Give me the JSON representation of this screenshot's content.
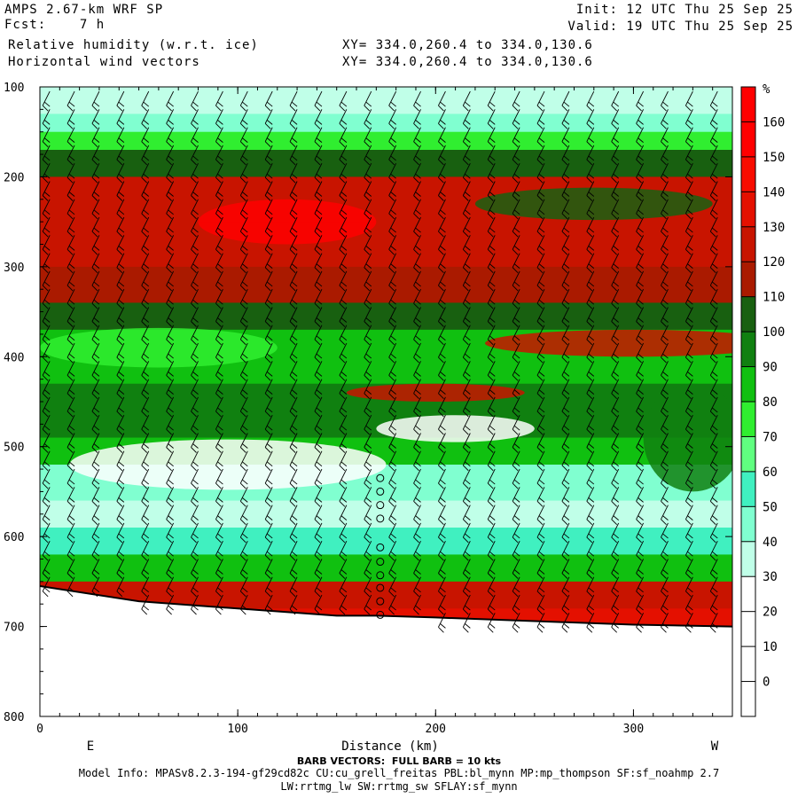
{
  "header": {
    "model": "AMPS 2.67-km WRF SP",
    "fcst": "Fcst:    7 h",
    "field1": "Relative humidity (w.r.t. ice)",
    "field2": "Horizontal wind vectors",
    "init": "Init: 12 UTC Thu 25 Sep 25",
    "valid": "Valid: 19 UTC Thu 25 Sep 25",
    "xy1": "XY= 334.0,260.4 to 334.0,130.6",
    "xy2": "XY= 334.0,260.4 to 334.0,130.6"
  },
  "footer": {
    "barb_note": "BARB VECTORS:  FULL BARB = 10 kts",
    "model_info": "Model Info: MPASv8.2.3-194-gf29cd82c CU:cu_grell_freitas PBL:bl_mynn MP:mp_thompson SF:sf_noahmp 2.7",
    "model_info2": "LW:rrtmg_lw SW:rrtmg_sw SFLAY:sf_mynn"
  },
  "chart_data": {
    "type": "heatmap",
    "title": "Relative humidity (w.r.t. ice)",
    "overlay": "Horizontal wind vectors (barbs)",
    "xlabel": "Distance (km)",
    "ylabel": "",
    "x_range": [
      0,
      350
    ],
    "y_range": [
      100,
      800
    ],
    "y_inverted": true,
    "x_ticks": [
      0,
      100,
      200,
      300
    ],
    "y_ticks": [
      100,
      200,
      300,
      400,
      500,
      600,
      700,
      800
    ],
    "x_end_labels": {
      "left": "E",
      "right": "W"
    },
    "colorbar": {
      "unit": "%",
      "levels": [
        0,
        10,
        20,
        30,
        40,
        50,
        60,
        70,
        80,
        90,
        100,
        110,
        120,
        130,
        140,
        150,
        160
      ],
      "colors": [
        "#ffffff",
        "#ffffff",
        "#ffffff",
        "#ffffff",
        "#c0ffe8",
        "#80ffd0",
        "#40f0c0",
        "#60ff80",
        "#30ee30",
        "#10c010",
        "#108010",
        "#186010",
        "#aa1a00",
        "#c81400",
        "#e41000",
        "#f80c00",
        "#ff0000",
        "#ff0000"
      ]
    },
    "rh_profile": {
      "pressure": [
        100,
        130,
        150,
        170,
        200,
        250,
        300,
        340,
        370,
        400,
        430,
        460,
        490,
        520,
        560,
        590,
        620,
        650,
        680
      ],
      "rh_west_mid": [
        35,
        45,
        75,
        100,
        125,
        125,
        118,
        102,
        80,
        88,
        95,
        98,
        80,
        40,
        35,
        55,
        85,
        125,
        130
      ]
    },
    "terrain_pressure": {
      "x": [
        0,
        50,
        100,
        150,
        170,
        200,
        250,
        300,
        350
      ],
      "p": [
        655,
        672,
        680,
        688,
        688,
        690,
        694,
        698,
        700
      ]
    },
    "barb_note": "FULL BARB = 10 kts"
  }
}
